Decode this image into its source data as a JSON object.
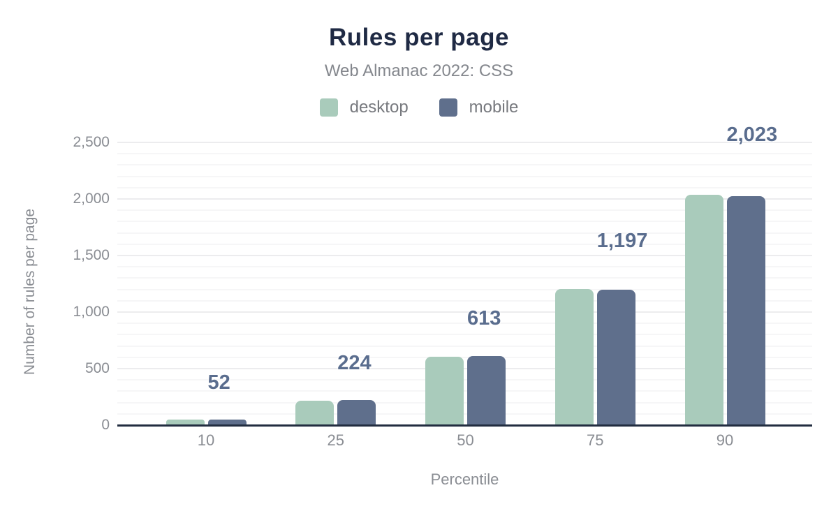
{
  "chart_data": {
    "type": "bar",
    "title": "Rules per page",
    "subtitle": "Web Almanac 2022: CSS",
    "xlabel": "Percentile",
    "ylabel": "Number of rules per page",
    "categories": [
      "10",
      "25",
      "50",
      "75",
      "90"
    ],
    "series": [
      {
        "name": "desktop",
        "color": "#a9cbbb",
        "values": [
          48,
          218,
          607,
          1205,
          2035
        ]
      },
      {
        "name": "mobile",
        "color": "#5f6f8c",
        "values": [
          52,
          224,
          613,
          1197,
          2023
        ]
      }
    ],
    "data_labels": [
      "52",
      "224",
      "613",
      "1,197",
      "2,023"
    ],
    "data_labels_series": "mobile",
    "ylim": [
      0,
      2500
    ],
    "y_ticks": [
      {
        "value": 0,
        "label": "0"
      },
      {
        "value": 500,
        "label": "500"
      },
      {
        "value": 1000,
        "label": "1,000"
      },
      {
        "value": 1500,
        "label": "1,500"
      },
      {
        "value": 2000,
        "label": "2,000"
      },
      {
        "value": 2500,
        "label": "2,500"
      }
    ],
    "grid": {
      "major_every": 500,
      "minor_every": 100,
      "on": true
    },
    "legend_position": "top",
    "colors": {
      "title": "#1f2a44",
      "subtitle": "#84878d",
      "tick_text": "#8a8d93",
      "legend_text": "#77797e",
      "data_label": "#5a6d8e",
      "axis_line": "#222d40",
      "grid_major": "#ececee",
      "grid_minor": "#f6f6f7",
      "background": "#ffffff"
    }
  }
}
